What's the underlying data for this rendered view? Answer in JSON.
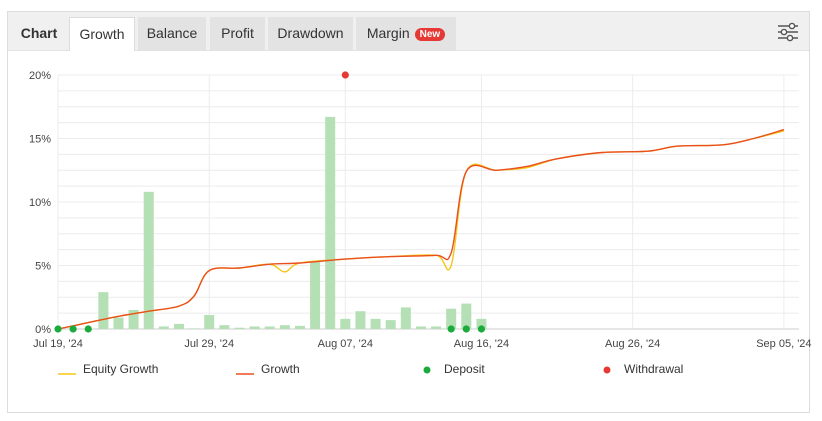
{
  "tabs": {
    "title": "Chart",
    "items": [
      {
        "label": "Growth",
        "active": true
      },
      {
        "label": "Balance",
        "active": false
      },
      {
        "label": "Profit",
        "active": false
      },
      {
        "label": "Drawdown",
        "active": false
      },
      {
        "label": "Margin",
        "active": false,
        "badge": "New"
      }
    ]
  },
  "settings_icon": "sliders-icon",
  "colors": {
    "equity": "#f5c518",
    "growth": "#e8501f",
    "deposit": "#1aab3c",
    "withdrawal": "#e53935",
    "bars": "#b5dfb5",
    "grid": "#ececec"
  },
  "chart_data": {
    "type": "line",
    "title": "",
    "xlabel": "",
    "ylabel": "",
    "x_ticks": [
      "Jul 19, '24",
      "Jul 29, '24",
      "Aug 07, '24",
      "Aug 16, '24",
      "Aug 26, '24",
      "Sep 05, '24"
    ],
    "y_ticks": [
      "0%",
      "5%",
      "10%",
      "15%",
      "20%"
    ],
    "ylim": [
      0,
      20
    ],
    "xlim": [
      "2024-07-19",
      "2024-09-06"
    ],
    "grid": true,
    "legend_position": "bottom",
    "series": [
      {
        "name": "Equity Growth",
        "type": "line",
        "color": "#f5c518",
        "points": [
          [
            "2024-07-19",
            0
          ],
          [
            "2024-07-21",
            0.5
          ],
          [
            "2024-07-23",
            1.0
          ],
          [
            "2024-07-25",
            1.4
          ],
          [
            "2024-07-27",
            1.8
          ],
          [
            "2024-07-28",
            2.6
          ],
          [
            "2024-07-29",
            4.6
          ],
          [
            "2024-07-31",
            4.8
          ],
          [
            "2024-08-02",
            5.1
          ],
          [
            "2024-08-03",
            4.5
          ],
          [
            "2024-08-04",
            5.2
          ],
          [
            "2024-08-07",
            5.5
          ],
          [
            "2024-08-10",
            5.7
          ],
          [
            "2024-08-13",
            5.8
          ],
          [
            "2024-08-14",
            5.0
          ],
          [
            "2024-08-15",
            12.4
          ],
          [
            "2024-08-17",
            12.5
          ],
          [
            "2024-08-19",
            12.7
          ],
          [
            "2024-08-21",
            13.4
          ],
          [
            "2024-08-24",
            13.9
          ],
          [
            "2024-08-27",
            14.0
          ],
          [
            "2024-08-29",
            14.4
          ],
          [
            "2024-09-01",
            14.5
          ],
          [
            "2024-09-03",
            15.0
          ],
          [
            "2024-09-05",
            15.6
          ]
        ]
      },
      {
        "name": "Growth",
        "type": "line",
        "color": "#e8501f",
        "points": [
          [
            "2024-07-19",
            0
          ],
          [
            "2024-07-21",
            0.5
          ],
          [
            "2024-07-23",
            1.0
          ],
          [
            "2024-07-25",
            1.4
          ],
          [
            "2024-07-27",
            1.8
          ],
          [
            "2024-07-28",
            2.6
          ],
          [
            "2024-07-29",
            4.6
          ],
          [
            "2024-07-31",
            4.8
          ],
          [
            "2024-08-02",
            5.1
          ],
          [
            "2024-08-04",
            5.2
          ],
          [
            "2024-08-07",
            5.5
          ],
          [
            "2024-08-10",
            5.7
          ],
          [
            "2024-08-13",
            5.8
          ],
          [
            "2024-08-14",
            6.0
          ],
          [
            "2024-08-15",
            12.4
          ],
          [
            "2024-08-17",
            12.5
          ],
          [
            "2024-08-19",
            12.8
          ],
          [
            "2024-08-21",
            13.4
          ],
          [
            "2024-08-24",
            13.9
          ],
          [
            "2024-08-27",
            14.0
          ],
          [
            "2024-08-29",
            14.4
          ],
          [
            "2024-09-01",
            14.5
          ],
          [
            "2024-09-03",
            15.0
          ],
          [
            "2024-09-05",
            15.7
          ]
        ]
      },
      {
        "name": "Deposit",
        "type": "scatter",
        "color": "#1aab3c",
        "points": [
          [
            "2024-07-19",
            0
          ],
          [
            "2024-07-20",
            0
          ],
          [
            "2024-07-21",
            0
          ],
          [
            "2024-08-14",
            0
          ],
          [
            "2024-08-15",
            0
          ],
          [
            "2024-08-16",
            0
          ]
        ]
      },
      {
        "name": "Withdrawal",
        "type": "scatter",
        "color": "#e53935",
        "points": [
          [
            "2024-08-07",
            20
          ]
        ]
      },
      {
        "type": "bar",
        "color": "#b5dfb5",
        "points": [
          [
            "2024-07-22",
            2.9
          ],
          [
            "2024-07-23",
            0.9
          ],
          [
            "2024-07-24",
            1.5
          ],
          [
            "2024-07-25",
            10.8
          ],
          [
            "2024-07-26",
            0.2
          ],
          [
            "2024-07-27",
            0.4
          ],
          [
            "2024-07-28",
            0.05
          ],
          [
            "2024-07-29",
            1.1
          ],
          [
            "2024-07-30",
            0.3
          ],
          [
            "2024-07-31",
            0.1
          ],
          [
            "2024-08-01",
            0.2
          ],
          [
            "2024-08-02",
            0.2
          ],
          [
            "2024-08-03",
            0.3
          ],
          [
            "2024-08-04",
            0.25
          ],
          [
            "2024-08-05",
            5.3
          ],
          [
            "2024-08-06",
            16.7
          ],
          [
            "2024-08-07",
            0.8
          ],
          [
            "2024-08-08",
            1.4
          ],
          [
            "2024-08-09",
            0.8
          ],
          [
            "2024-08-10",
            0.7
          ],
          [
            "2024-08-11",
            1.7
          ],
          [
            "2024-08-12",
            0.2
          ],
          [
            "2024-08-13",
            0.2
          ],
          [
            "2024-08-14",
            1.6
          ],
          [
            "2024-08-15",
            2.0
          ],
          [
            "2024-08-16",
            0.8
          ]
        ]
      }
    ]
  }
}
